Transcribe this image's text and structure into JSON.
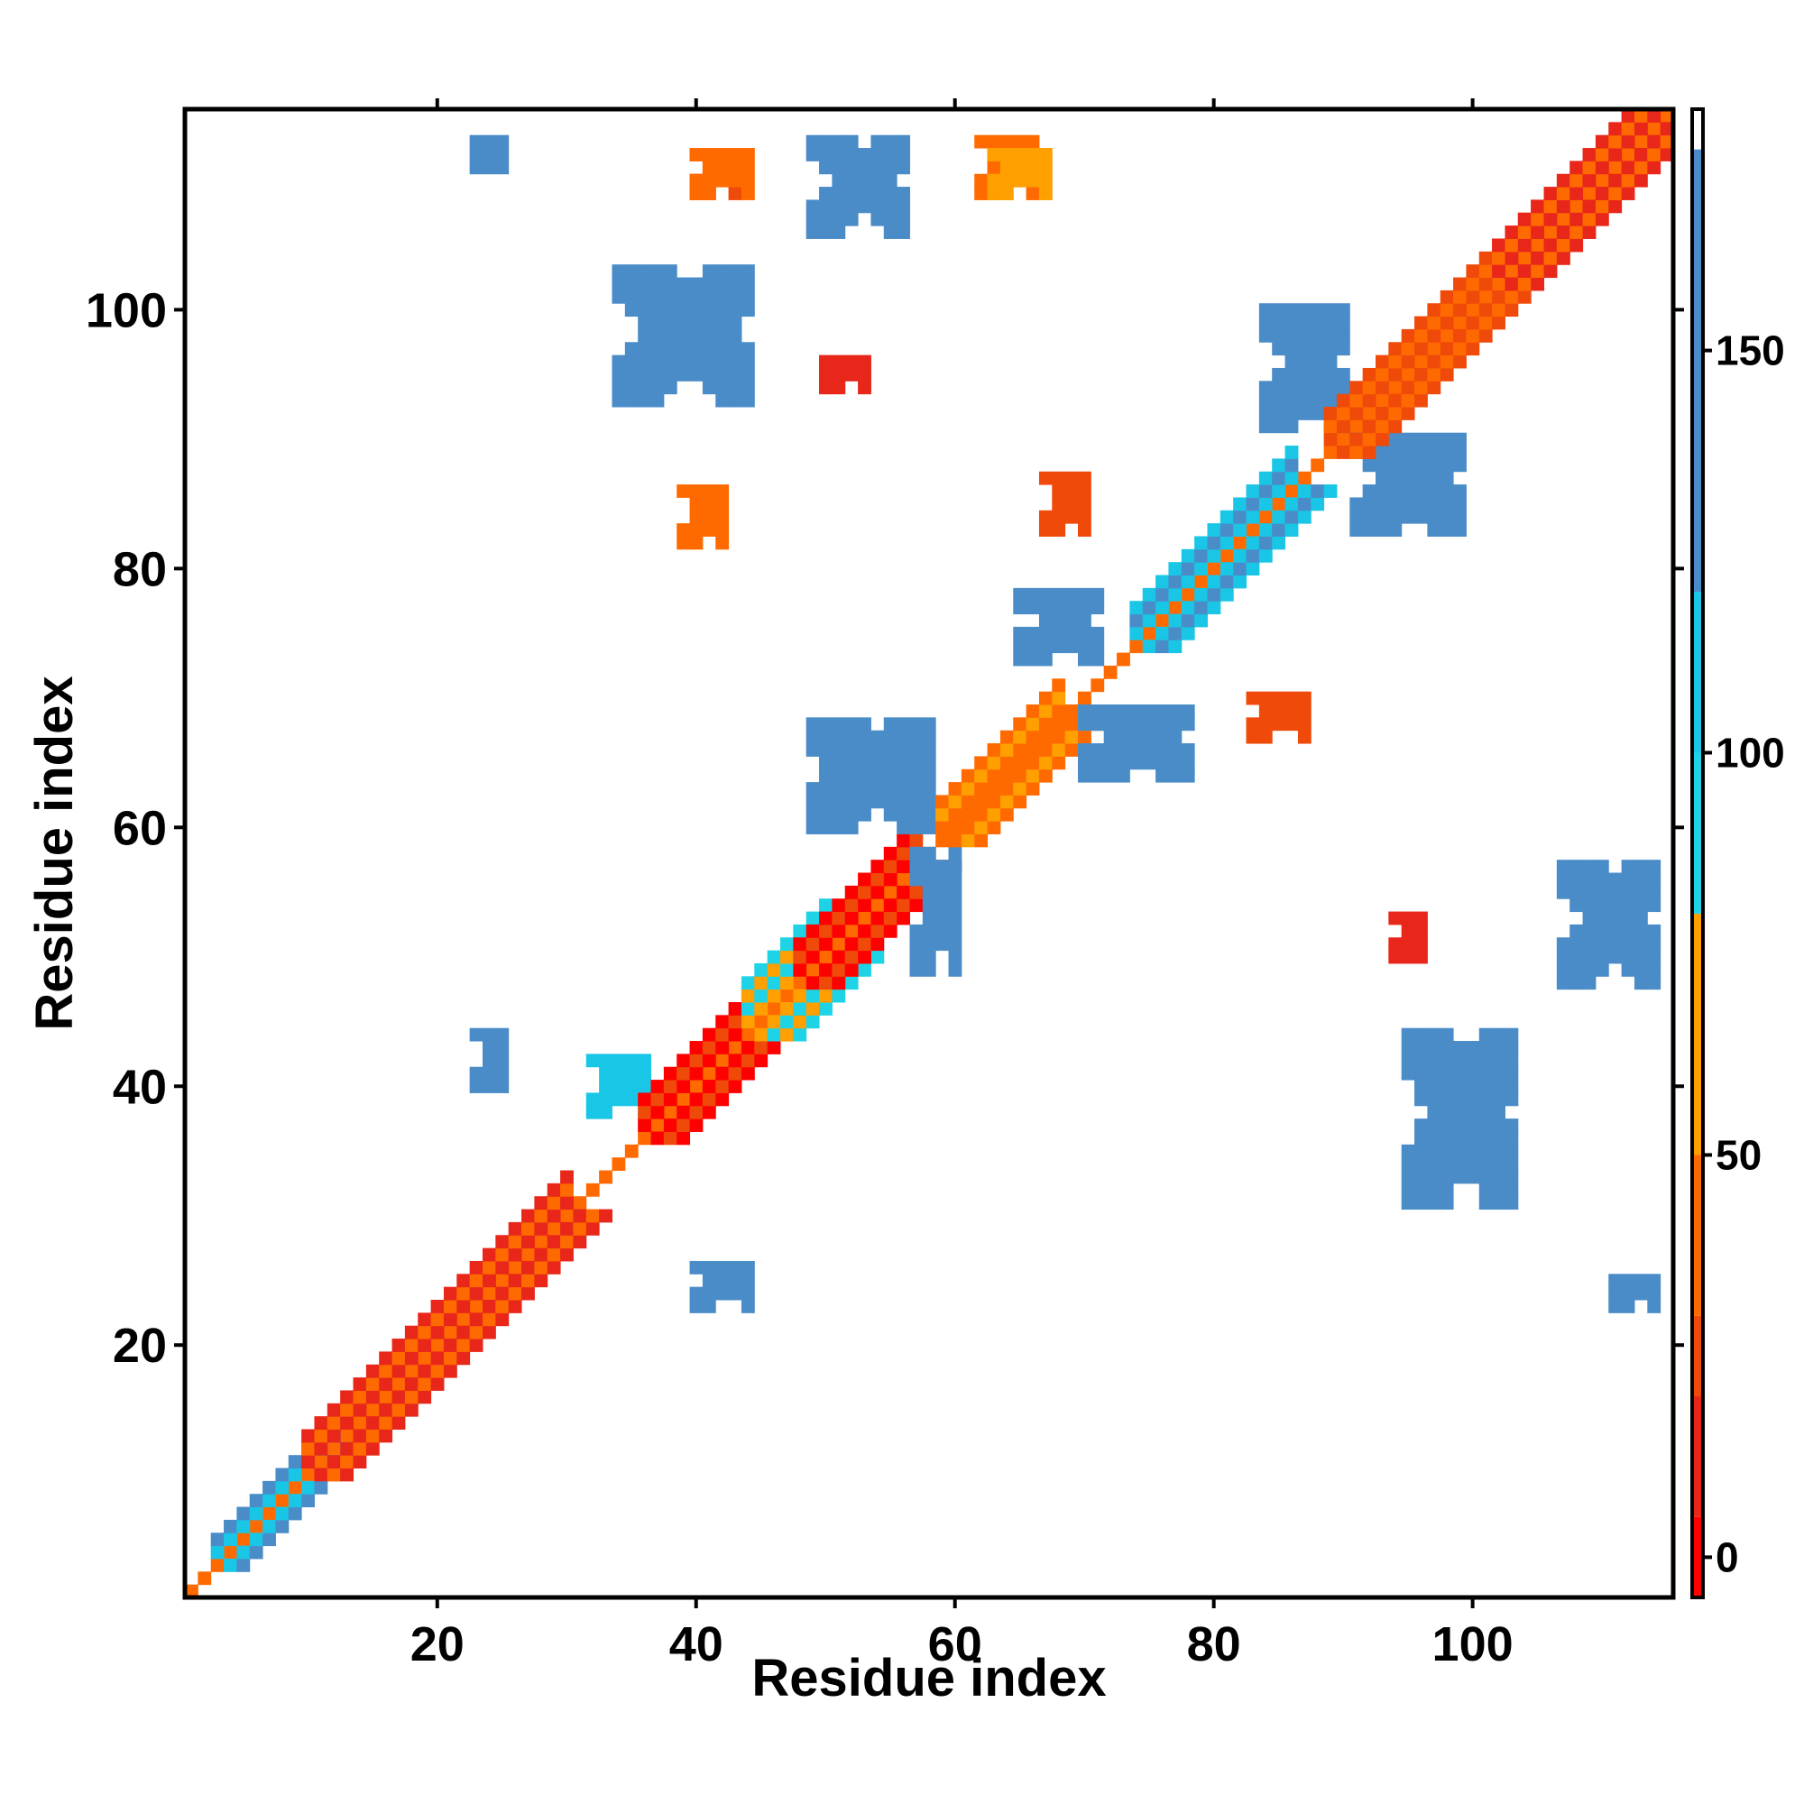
{
  "chart_data": {
    "type": "heatmap",
    "title": "",
    "xlabel": "Residue index",
    "ylabel": "Residue index",
    "xlim": [
      1,
      115
    ],
    "ylim": [
      1,
      115
    ],
    "x_ticks": [
      20,
      40,
      60,
      80,
      100
    ],
    "y_ticks": [
      20,
      40,
      60,
      80,
      100
    ],
    "grid": false,
    "colorbar": {
      "range": [
        -5,
        180
      ],
      "ticks": [
        0,
        50,
        100,
        150
      ],
      "stops": [
        {
          "from": -5,
          "to": 5,
          "color": "#ff0000"
        },
        {
          "from": 5,
          "to": 20,
          "color": "#e8261a"
        },
        {
          "from": 20,
          "to": 30,
          "color": "#f04a0a"
        },
        {
          "from": 30,
          "to": 50,
          "color": "#ff6a00"
        },
        {
          "from": 50,
          "to": 80,
          "color": "#ff9f00"
        },
        {
          "from": 80,
          "to": 100,
          "color": "#1fd3e6"
        },
        {
          "from": 100,
          "to": 120,
          "color": "#19c6e6"
        },
        {
          "from": 120,
          "to": 175,
          "color": "#4a8cc8"
        },
        {
          "from": 175,
          "to": 180,
          "color": "#ffffff"
        }
      ]
    },
    "cells": [
      {
        "i": "1-115",
        "j": "diag",
        "value": 30
      },
      {
        "i": "3-12",
        "j": "i+2",
        "value": 100
      },
      {
        "i": "10-30",
        "j": "i+3",
        "value": 10
      },
      {
        "i": "32-36",
        "j": "38-42",
        "value": 110
      },
      {
        "i": "36-44",
        "j": "i+3",
        "value": 0
      },
      {
        "i": "44-50",
        "j": "i+4",
        "value": 60
      },
      {
        "i": "48-57",
        "j": "i+3",
        "value": 0
      },
      {
        "i": "49-58",
        "j": "60-68",
        "value": 140
      },
      {
        "i": "57-60",
        "j": "49-58",
        "value": 130
      },
      {
        "i": "59-68",
        "j": "i+3",
        "value": 40
      },
      {
        "i": "65-71",
        "j": "73-78",
        "value": 140
      },
      {
        "i": "70-78",
        "j": "64-69",
        "value": 140
      },
      {
        "i": "74-86",
        "j": "i+3",
        "value": 110
      },
      {
        "i": "84-90",
        "j": "91-100",
        "value": 140
      },
      {
        "i": "91-99",
        "j": "83-90",
        "value": 140
      },
      {
        "i": "89-105",
        "j": "i+3",
        "value": 20
      },
      {
        "i": "102-115",
        "j": "i+3",
        "value": 10
      },
      {
        "i": "34-44",
        "j": "93-103",
        "value": 140
      },
      {
        "i": "49-56",
        "j": "106-113",
        "value": 140
      },
      {
        "i": "95-103",
        "j": "31-44",
        "value": 140
      },
      {
        "i": "107-114",
        "j": "48-57",
        "value": 140
      },
      {
        "i": "23-25",
        "j": "40-44",
        "value": 120
      },
      {
        "i": "40-44",
        "j": "23-26",
        "value": 120
      },
      {
        "i": "23-25",
        "j": "111-113",
        "value": 150
      },
      {
        "i": "111-114",
        "j": "23-25",
        "value": 150
      },
      {
        "i": "40-43",
        "j": "109-112",
        "value": 20
      },
      {
        "i": "62-66",
        "j": "109-113",
        "value": 40
      },
      {
        "i": "67-70",
        "j": "83-87",
        "value": 20
      },
      {
        "i": "83-87",
        "j": "67-70",
        "value": 20
      },
      {
        "i": "39-42",
        "j": "82-86",
        "value": 40
      },
      {
        "i": "50-53",
        "j": "94-96",
        "value": 10
      },
      {
        "i": "94-96",
        "j": "50-53",
        "value": 10
      },
      {
        "i": "40-44",
        "j": "109-112",
        "value": 40
      },
      {
        "i": "63-67",
        "j": "109-112",
        "value": 60
      }
    ]
  }
}
